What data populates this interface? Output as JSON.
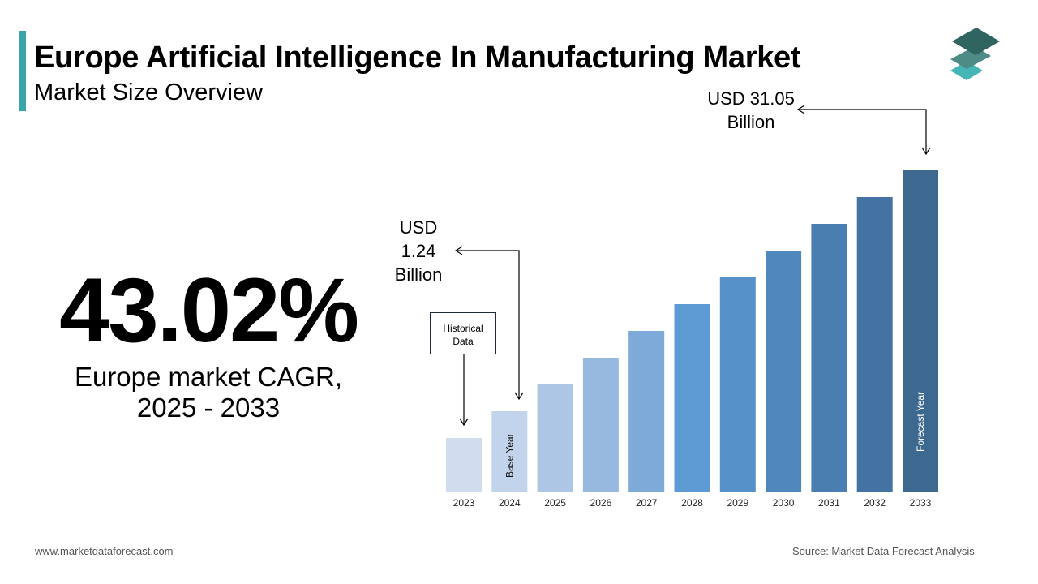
{
  "header": {
    "title": "Europe Artificial Intelligence In Manufacturing Market",
    "subtitle": "Market Size Overview"
  },
  "kpi": {
    "cagr": "43.02%",
    "label_line1": "Europe market CAGR,",
    "label_line2": "2025 - 2033"
  },
  "footer": {
    "website": "www.marketdataforecast.com",
    "source": "Source: Market Data Forecast Analysis"
  },
  "logo": {
    "icon": "stacked-layers-logo",
    "colors": [
      "#2f6460",
      "#4e8b86",
      "#45b5b5"
    ]
  },
  "chart_data": {
    "type": "bar",
    "categories": [
      "2023",
      "2024",
      "2025",
      "2026",
      "2027",
      "2028",
      "2029",
      "2030",
      "2031",
      "2032",
      "2033"
    ],
    "values": [
      2,
      3,
      4,
      5,
      6,
      7,
      8,
      9,
      10,
      11,
      12
    ],
    "colors": [
      "#d0ddee",
      "#c2d4eb",
      "#adc6e5",
      "#97b9df",
      "#7eaad9",
      "#5e9bd4",
      "#5791c9",
      "#5088bd",
      "#4a7eb1",
      "#4473a3",
      "#3d6890"
    ],
    "annotations": {
      "start_value": {
        "line1": "USD",
        "line2": "1.24",
        "line3": "Billion",
        "year": "2024"
      },
      "end_value": {
        "line1": "USD 31.05",
        "line2": "Billion",
        "year": "2033"
      },
      "historical_line1": "Historical",
      "historical_line2": "Data",
      "base_year": "Base Year",
      "forecast_year": "Forecast Year"
    },
    "grid": false,
    "axis_visible": false
  }
}
